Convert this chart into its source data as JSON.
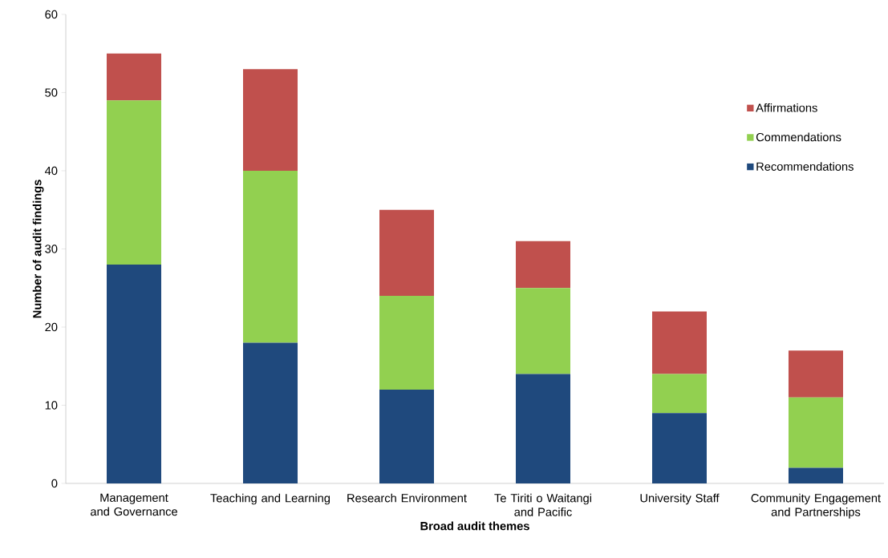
{
  "chart_data": {
    "type": "bar",
    "stacked": true,
    "xlabel": "Broad audit themes",
    "ylabel": "Number of audit findings",
    "categories": [
      "Management and Governance",
      "Teaching and Learning",
      "Research Environment",
      "Te Tiriti o Waitangi and Pacific",
      "University Staff",
      "Community Engagement and Partnerships"
    ],
    "series": [
      {
        "name": "Recommendations",
        "color": "#1f497d",
        "values": [
          28,
          18,
          12,
          14,
          9,
          2
        ]
      },
      {
        "name": "Commendations",
        "color": "#92d050",
        "values": [
          21,
          22,
          12,
          11,
          5,
          9
        ]
      },
      {
        "name": "Affirmations",
        "color": "#c0504d",
        "values": [
          6,
          13,
          11,
          6,
          8,
          6
        ]
      }
    ],
    "ylim": [
      0,
      60
    ],
    "yticks": [
      0,
      10,
      20,
      30,
      40,
      50,
      60
    ],
    "legend": "right"
  }
}
